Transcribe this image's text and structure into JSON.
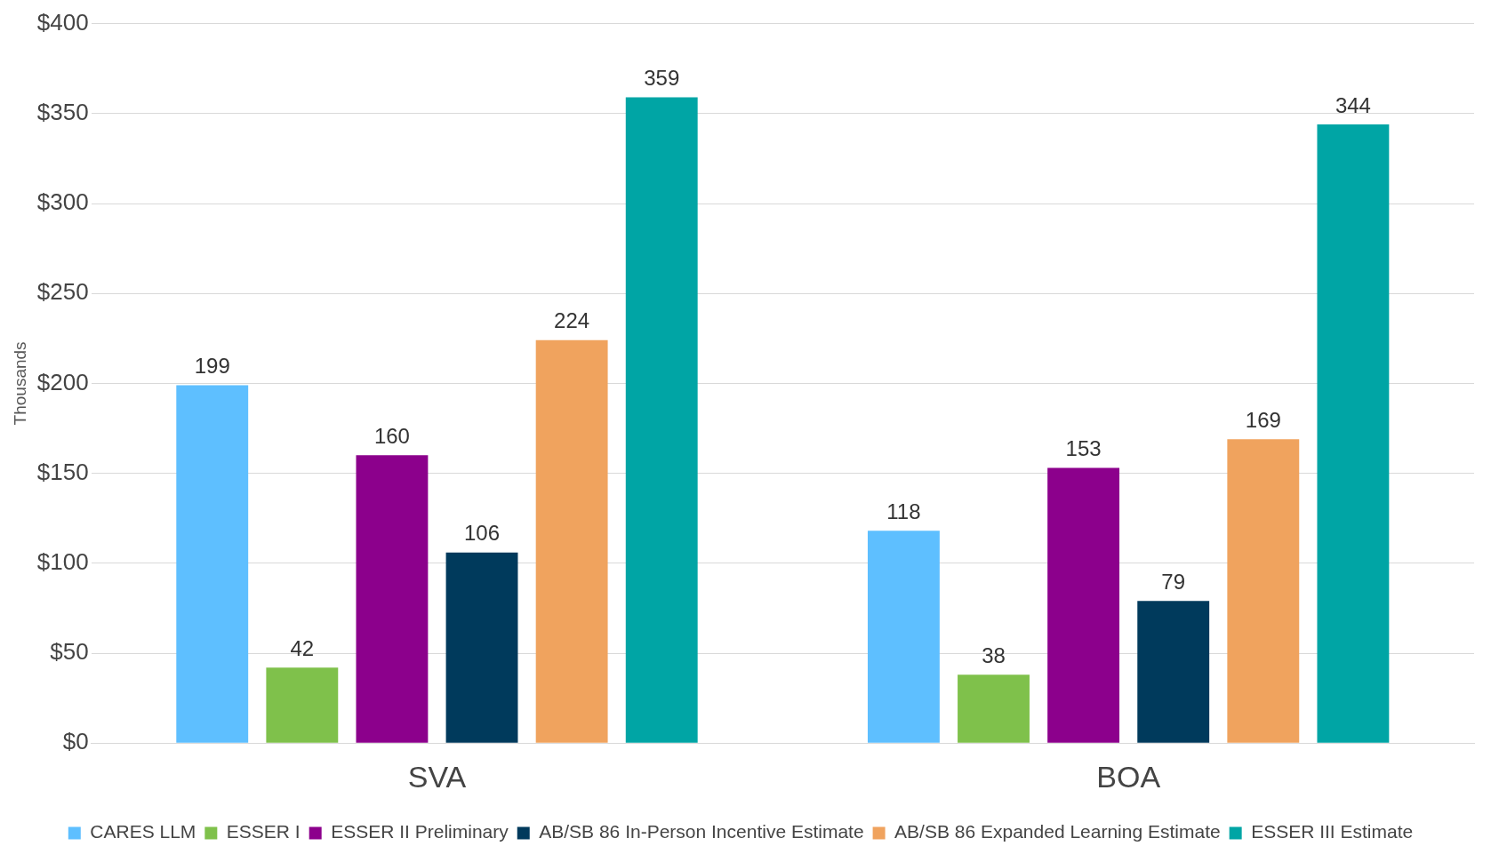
{
  "chart_data": {
    "type": "bar",
    "ylabel": "Thousands",
    "categories": [
      "SVA",
      "BOA"
    ],
    "series": [
      {
        "name": "CARES LLM",
        "color": "#5ebfff",
        "values": [
          199,
          118
        ]
      },
      {
        "name": "ESSER I",
        "color": "#7fc14b",
        "values": [
          42,
          38
        ]
      },
      {
        "name": "ESSER II Preliminary",
        "color": "#8c008c",
        "values": [
          160,
          153
        ]
      },
      {
        "name": "AB/SB 86 In-Person Incentive Estimate",
        "color": "#003a5c",
        "values": [
          106,
          79
        ]
      },
      {
        "name": "AB/SB 86 Expanded Learning Estimate",
        "color": "#f0a35e",
        "values": [
          224,
          169
        ]
      },
      {
        "name": "ESSER III Estimate",
        "color": "#00a5a5",
        "values": [
          359,
          344
        ]
      }
    ],
    "ylim": [
      0,
      400
    ],
    "yticks": [
      {
        "value": 0,
        "label": "$0"
      },
      {
        "value": 50,
        "label": "$50"
      },
      {
        "value": 100,
        "label": "$100"
      },
      {
        "value": 150,
        "label": "$150"
      },
      {
        "value": 200,
        "label": "$200"
      },
      {
        "value": 250,
        "label": "$250"
      },
      {
        "value": 300,
        "label": "$300"
      },
      {
        "value": 350,
        "label": "$350"
      },
      {
        "value": 400,
        "label": "$400"
      }
    ],
    "grid": "y",
    "legend": "bottom",
    "data_labels": true
  }
}
